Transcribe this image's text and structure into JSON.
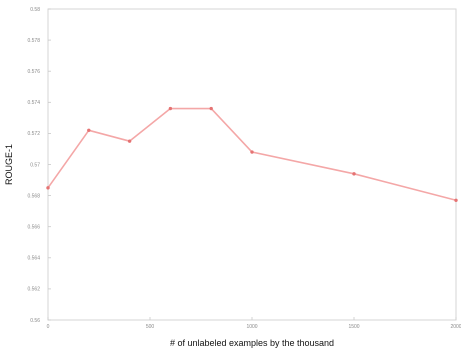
{
  "chart_data": {
    "type": "line",
    "xlabel": "# of unlabeled examples by the thousand",
    "ylabel": "ROUGE-1",
    "xlim": [
      0,
      2000
    ],
    "ylim": [
      0.56,
      0.58
    ],
    "xticks": [
      0,
      500,
      1000,
      1500,
      2000
    ],
    "yticks": [
      0.56,
      0.562,
      0.564,
      0.566,
      0.568,
      0.57,
      0.572,
      0.574,
      0.576,
      0.578,
      0.58
    ],
    "ytick_labels": [
      "0.56",
      "0.562",
      "0.564",
      "0.566",
      "0.568",
      "0.57",
      "0.572",
      "0.574",
      "0.576",
      "0.578",
      "0.58"
    ],
    "grid": false,
    "series": [
      {
        "x": [
          0,
          200,
          400,
          600,
          800,
          1000,
          1500,
          2000
        ],
        "values": [
          0.5685,
          0.5722,
          0.5715,
          0.5736,
          0.5736,
          0.5708,
          0.5694,
          0.5677
        ],
        "color": "#f4a7a7",
        "marker_color": "#e57373"
      }
    ]
  }
}
